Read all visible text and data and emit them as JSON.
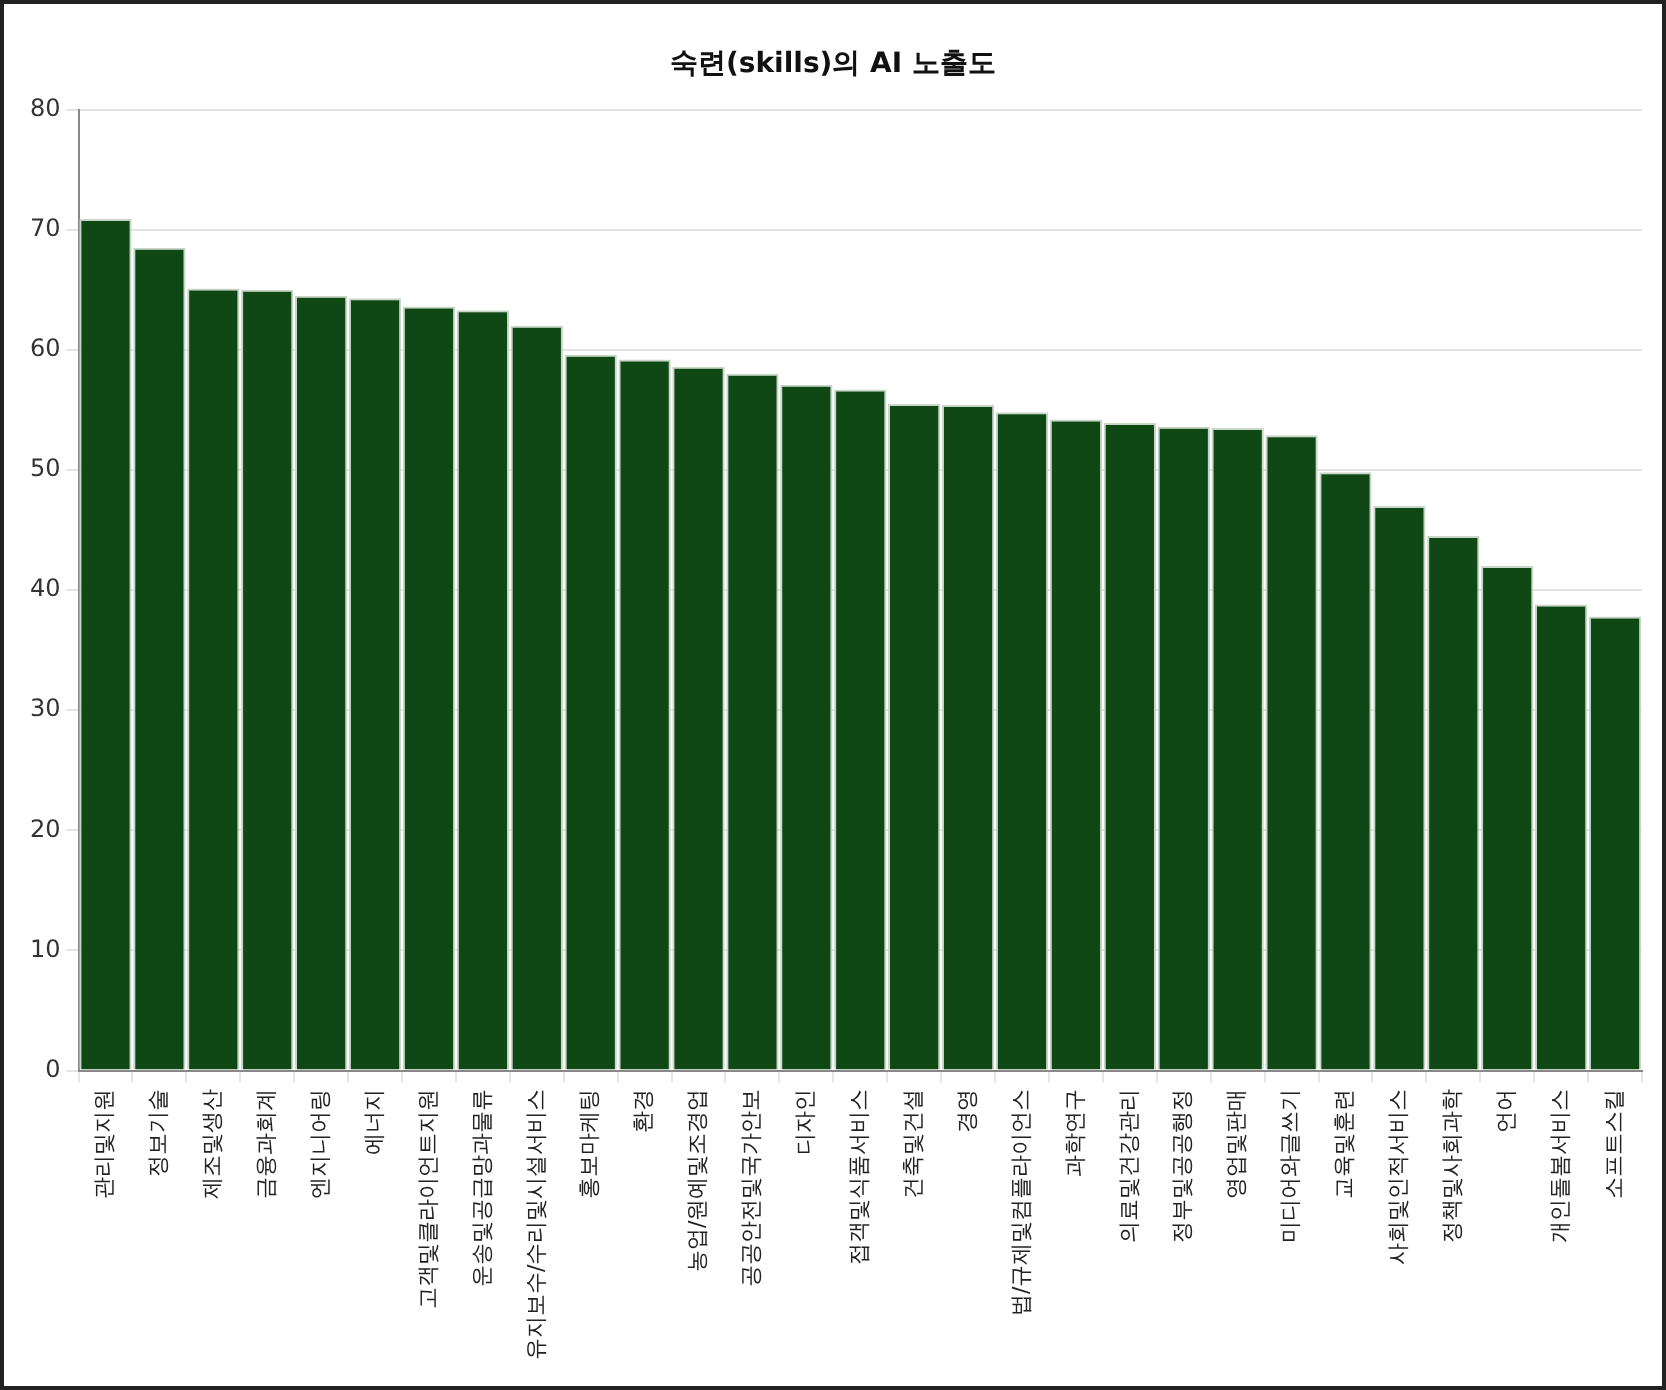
{
  "chart_data": {
    "type": "bar",
    "title": "숙련(skills)의 AI 노출도",
    "categories": [
      "관리및지원",
      "정보기술",
      "제조및생산",
      "금융과회계",
      "엔지니어링",
      "에너지",
      "고객및클라이언트지원",
      "운송및공급망과물류",
      "유지보수/수리및시설서비스",
      "홍보마케팅",
      "환경",
      "농업/원예및조경업",
      "공공안전및국가안보",
      "디자인",
      "접객및식품서비스",
      "건축및건설",
      "경영",
      "법/규제및컴플라이언스",
      "과학연구",
      "의료및건강관리",
      "정부및공공행정",
      "영업및판매",
      "미디어와글쓰기",
      "교육및훈련",
      "사회및인적서비스",
      "정책및사회과학",
      "언어",
      "개인돌봄서비스",
      "소프트스킬"
    ],
    "values": [
      70.9,
      68.5,
      65.1,
      65.0,
      64.5,
      64.3,
      63.6,
      63.3,
      62.0,
      59.6,
      59.2,
      58.6,
      58.0,
      57.1,
      56.7,
      55.5,
      55.4,
      54.8,
      54.2,
      53.9,
      53.6,
      53.5,
      52.9,
      49.8,
      47.0,
      44.5,
      42.0,
      38.8,
      37.8
    ],
    "color": "#0f4715",
    "ylim": [
      0,
      80
    ],
    "yticks": [
      0,
      10,
      20,
      30,
      40,
      50,
      60,
      70,
      80
    ],
    "grid": "y",
    "legend": false
  }
}
